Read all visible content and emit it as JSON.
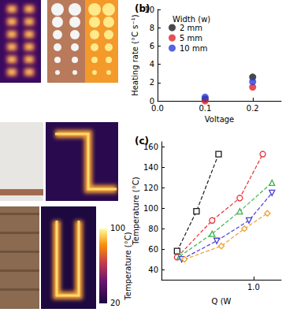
{
  "chart_data": [
    {
      "type": "scatter",
      "title": "(b)",
      "x_label": "Voltage",
      "y_label": "Heating rate (°C s⁻¹)",
      "legend_title": "Width (w)",
      "legend": "upper left",
      "grid": false,
      "marker": "circle",
      "xlim": [
        0,
        0.26
      ],
      "xticks": [
        {
          "value": 0,
          "label": "0.0"
        },
        {
          "value": 0.1,
          "label": "0.1"
        },
        {
          "value": 0.2,
          "label": "0.2"
        }
      ],
      "ylim": [
        0,
        10
      ],
      "yticks": [
        0,
        2,
        4,
        6,
        8,
        10
      ],
      "series": [
        {
          "name": "2 mm",
          "color": "#1a1a1a",
          "x": [
            0.1,
            0.2
          ],
          "values": [
            0.2,
            2.6
          ]
        },
        {
          "name": "5 mm",
          "color": "#e02424",
          "x": [
            0.1,
            0.2
          ],
          "values": [
            0.0,
            1.5
          ]
        },
        {
          "name": "10 mm",
          "color": "#2a3fd8",
          "x": [
            0.1,
            0.2
          ],
          "values": [
            0.4,
            2.1
          ]
        }
      ]
    },
    {
      "type": "line",
      "title": "(c)",
      "x_label": "Q (W",
      "y_label": "Temperature (°C)",
      "grid": false,
      "line_style": "dashed",
      "xlim": [
        0,
        1.3
      ],
      "xticks": [
        {
          "value": 1,
          "label": "1.0"
        }
      ],
      "ylim": [
        30,
        165
      ],
      "yticks": [
        40,
        60,
        80,
        100,
        120,
        140,
        160
      ],
      "series": [
        {
          "color": "#1a1a1a",
          "marker": "square",
          "x": [
            0.17,
            0.38,
            0.62
          ],
          "values": [
            58,
            97,
            153
          ]
        },
        {
          "color": "#e8333a",
          "marker": "circle",
          "x": [
            0.17,
            0.55,
            0.85,
            1.1
          ],
          "values": [
            52,
            88,
            110,
            153
          ]
        },
        {
          "color": "#3fb44a",
          "marker": "triangle",
          "x": [
            0.2,
            0.55,
            0.85,
            1.2
          ],
          "values": [
            53,
            75,
            97,
            125
          ]
        },
        {
          "color": "#4a3fd4",
          "marker": "triangle-down",
          "x": [
            0.22,
            0.6,
            0.95,
            1.2
          ],
          "values": [
            50,
            68,
            88,
            115
          ]
        },
        {
          "color": "#f0a030",
          "marker": "diamond",
          "x": [
            0.25,
            0.65,
            0.9,
            1.15
          ],
          "values": [
            50,
            63,
            80,
            95
          ]
        }
      ]
    }
  ],
  "colorbar": {
    "label": "Temperature (°C)",
    "range": [
      20,
      100
    ],
    "ticks": [
      20,
      100
    ]
  }
}
